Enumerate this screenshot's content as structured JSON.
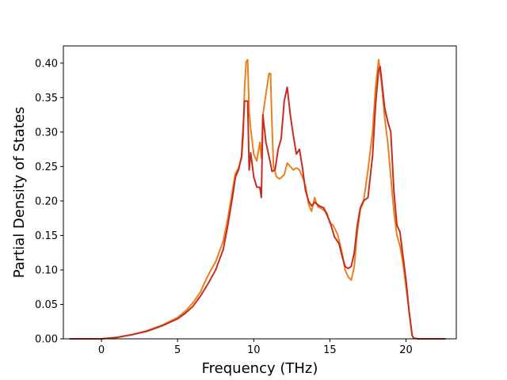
{
  "chart_data": {
    "type": "line",
    "title": "",
    "xlabel": "Frequency (THz)",
    "ylabel": "Partial Density of States",
    "xlim": [
      -2.5,
      23.3
    ],
    "ylim": [
      0.0,
      0.425
    ],
    "xticks": [
      0,
      5,
      10,
      15,
      20
    ],
    "xtick_labels": [
      "0",
      "5",
      "10",
      "15",
      "20"
    ],
    "yticks": [
      0.0,
      0.05,
      0.1,
      0.15,
      0.2,
      0.25,
      0.3,
      0.35,
      0.4
    ],
    "ytick_labels": [
      "0.00",
      "0.05",
      "0.10",
      "0.15",
      "0.20",
      "0.25",
      "0.30",
      "0.35",
      "0.40"
    ],
    "grid": false,
    "legend": "none",
    "series": [
      {
        "color": "#e8801e",
        "x": [
          -2.1,
          -1,
          0,
          0.5,
          1,
          2,
          3,
          4,
          5,
          5.5,
          6,
          6.5,
          6.7,
          7,
          7.5,
          8,
          8.3,
          8.6,
          8.8,
          9,
          9.2,
          9.3,
          9.4,
          9.5,
          9.6,
          9.7,
          9.8,
          10,
          10.2,
          10.4,
          10.5,
          10.6,
          10.8,
          11,
          11.1,
          11.2,
          11.3,
          11.5,
          11.7,
          12,
          12.2,
          12.4,
          12.6,
          12.8,
          13,
          13.2,
          13.4,
          13.6,
          13.8,
          14,
          14.2,
          14.5,
          14.8,
          15,
          15.2,
          15.5,
          15.8,
          16,
          16.2,
          16.4,
          16.6,
          16.8,
          17,
          17.2,
          17.5,
          17.8,
          18,
          18.2,
          18.4,
          18.6,
          18.8,
          19,
          19.2,
          19.4,
          19.6,
          19.8,
          20,
          20.2,
          20.4,
          20.5,
          20.8,
          21.5,
          22.6
        ],
        "values": [
          0.0,
          0.0,
          0.0,
          0.001,
          0.002,
          0.006,
          0.012,
          0.02,
          0.031,
          0.04,
          0.052,
          0.068,
          0.078,
          0.092,
          0.112,
          0.142,
          0.175,
          0.215,
          0.24,
          0.248,
          0.262,
          0.292,
          0.365,
          0.402,
          0.405,
          0.33,
          0.305,
          0.268,
          0.258,
          0.285,
          0.262,
          0.325,
          0.355,
          0.385,
          0.385,
          0.31,
          0.25,
          0.235,
          0.232,
          0.238,
          0.255,
          0.25,
          0.245,
          0.248,
          0.245,
          0.235,
          0.222,
          0.195,
          0.185,
          0.205,
          0.192,
          0.188,
          0.183,
          0.168,
          0.165,
          0.152,
          0.125,
          0.1,
          0.09,
          0.085,
          0.105,
          0.155,
          0.188,
          0.198,
          0.245,
          0.3,
          0.365,
          0.405,
          0.37,
          0.32,
          0.285,
          0.235,
          0.185,
          0.15,
          0.135,
          0.11,
          0.075,
          0.04,
          0.005,
          0.001,
          0.0,
          0.0,
          0.0
        ]
      },
      {
        "color": "#c42e22",
        "x": [
          -2.1,
          -1,
          0,
          0.5,
          1,
          2,
          3,
          4,
          5,
          5.5,
          6,
          6.5,
          7,
          7.5,
          8,
          8.3,
          8.6,
          8.8,
          9,
          9.2,
          9.4,
          9.6,
          9.7,
          9.8,
          10,
          10.2,
          10.4,
          10.5,
          10.6,
          10.8,
          11,
          11.2,
          11.4,
          11.6,
          11.8,
          12,
          12.2,
          12.4,
          12.6,
          12.8,
          13,
          13.2,
          13.4,
          13.6,
          13.8,
          14,
          14.3,
          14.6,
          15,
          15.3,
          15.6,
          15.8,
          16,
          16.2,
          16.4,
          16.6,
          16.8,
          17,
          17.2,
          17.5,
          17.8,
          18,
          18.2,
          18.3,
          18.4,
          18.6,
          18.8,
          19,
          19.2,
          19.4,
          19.6,
          19.8,
          20,
          20.2,
          20.4,
          20.5,
          20.8,
          21.5,
          22.6
        ],
        "values": [
          0.0,
          0.0,
          0.0,
          0.001,
          0.002,
          0.006,
          0.011,
          0.019,
          0.029,
          0.037,
          0.047,
          0.062,
          0.08,
          0.1,
          0.13,
          0.165,
          0.205,
          0.235,
          0.245,
          0.265,
          0.345,
          0.345,
          0.245,
          0.27,
          0.235,
          0.22,
          0.22,
          0.205,
          0.325,
          0.285,
          0.265,
          0.243,
          0.245,
          0.275,
          0.29,
          0.345,
          0.365,
          0.325,
          0.295,
          0.268,
          0.275,
          0.248,
          0.215,
          0.2,
          0.193,
          0.198,
          0.193,
          0.19,
          0.17,
          0.148,
          0.138,
          0.12,
          0.105,
          0.102,
          0.105,
          0.125,
          0.165,
          0.19,
          0.2,
          0.205,
          0.265,
          0.34,
          0.39,
          0.395,
          0.375,
          0.335,
          0.315,
          0.3,
          0.215,
          0.165,
          0.155,
          0.12,
          0.085,
          0.04,
          0.005,
          0.001,
          0.0,
          0.0,
          0.0
        ]
      }
    ]
  }
}
